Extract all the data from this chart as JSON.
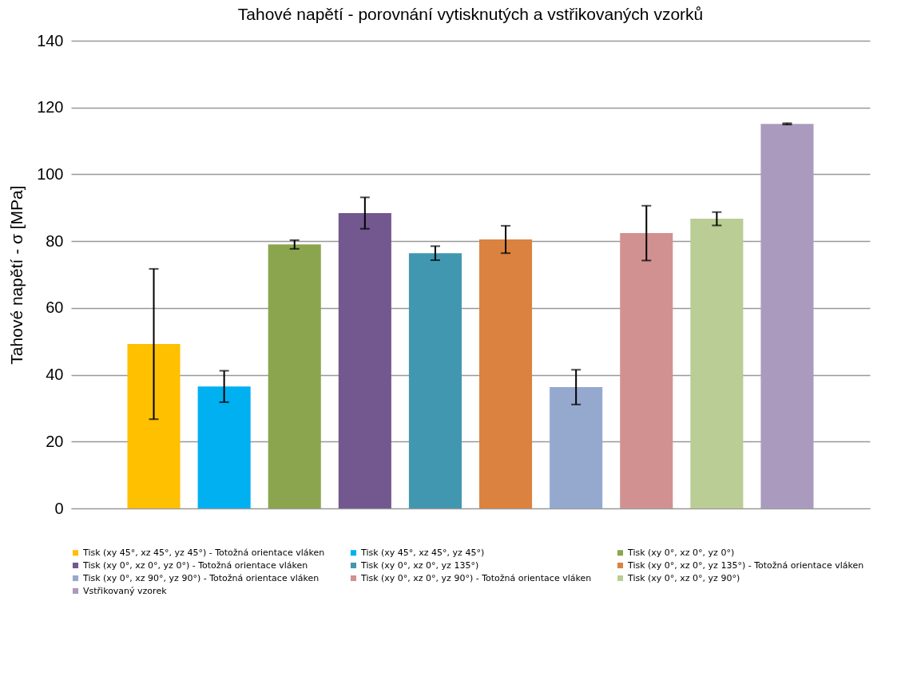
{
  "chart_data": {
    "type": "bar",
    "title": "Tahové napětí - porovnání vytisknutých a vstřikovaných vzorků",
    "ylabel": "Tahové napětí - σ [MPa]",
    "categories": [
      null
    ],
    "ylim": [
      0,
      140
    ],
    "yticks": [
      0,
      20,
      40,
      60,
      80,
      100,
      120,
      140
    ],
    "grid": "y",
    "legend": "bottom",
    "series": [
      {
        "name": "Tisk (xy 45°, xz 45°, yz 45°) - Totožná orientace vláken",
        "color": "#ffc000",
        "values": [
          49.2
        ],
        "errors": [
          22.5
        ]
      },
      {
        "name": "Tisk (xy 45°, xz 45°, yz 45°)",
        "color": "#00b0f0",
        "values": [
          36.5
        ],
        "errors": [
          4.7
        ]
      },
      {
        "name": "Tisk (xy 0°, xz 0°, yz 0°)",
        "color": "#8ba54f",
        "values": [
          79
        ],
        "errors": [
          1.3
        ]
      },
      {
        "name": "Tisk (xy 0°, xz 0°, yz 0°) - Totožná orientace vláken",
        "color": "#72588e",
        "values": [
          88.4
        ],
        "errors": [
          4.7
        ]
      },
      {
        "name": "Tisk (xy 0°, xz 0°, yz 135°)",
        "color": "#4297b0",
        "values": [
          76.4
        ],
        "errors": [
          2.1
        ]
      },
      {
        "name": "Tisk (xy 0°, xz 0°, yz 135°) - Totožná orientace vláken",
        "color": "#db8240",
        "values": [
          80.5
        ],
        "errors": [
          4.1
        ]
      },
      {
        "name": "Tisk (xy 0°, xz 90°, yz 90°) - Totožná orientace vláken",
        "color": "#95a9cf",
        "values": [
          36.3
        ],
        "errors": [
          5.2
        ]
      },
      {
        "name": "Tisk (xy 0°, xz 0°, yz 90°) - Totožná orientace vláken",
        "color": "#d19191",
        "values": [
          82.4
        ],
        "errors": [
          8.2
        ]
      },
      {
        "name": "Tisk (xy 0°, xz 0°, yz 90°)",
        "color": "#b9cd95",
        "values": [
          86.7
        ],
        "errors": [
          2
        ]
      },
      {
        "name": "Vstřikovaný vzorek",
        "color": "#aa9bbe",
        "values": [
          115.1
        ],
        "errors": [
          0.2
        ]
      }
    ]
  }
}
